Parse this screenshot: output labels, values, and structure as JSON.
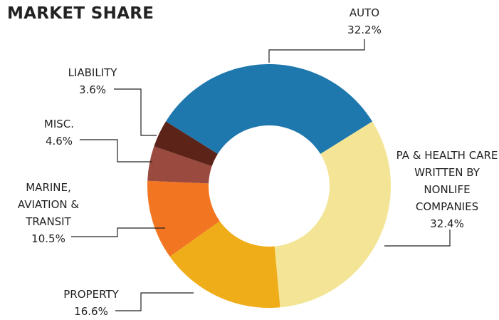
{
  "chart_data": {
    "type": "donut",
    "title": "MARKET SHARE",
    "categories": [
      "AUTO",
      "PA & HEALTH CARE WRITTEN BY NONLIFE COMPANIES",
      "PROPERTY",
      "MARINE, AVIATION & TRANSIT",
      "MISC.",
      "LIABILITY"
    ],
    "values": [
      32.2,
      32.4,
      16.6,
      10.5,
      4.6,
      3.6
    ],
    "value_labels": [
      "32.2%",
      "32.4%",
      "16.6%",
      "10.5%",
      "4.6%",
      "3.6%"
    ],
    "colors": [
      "#1f78ad",
      "#f3e595",
      "#f0ad1a",
      "#f27621",
      "#9a4a3e",
      "#5c2419"
    ]
  }
}
